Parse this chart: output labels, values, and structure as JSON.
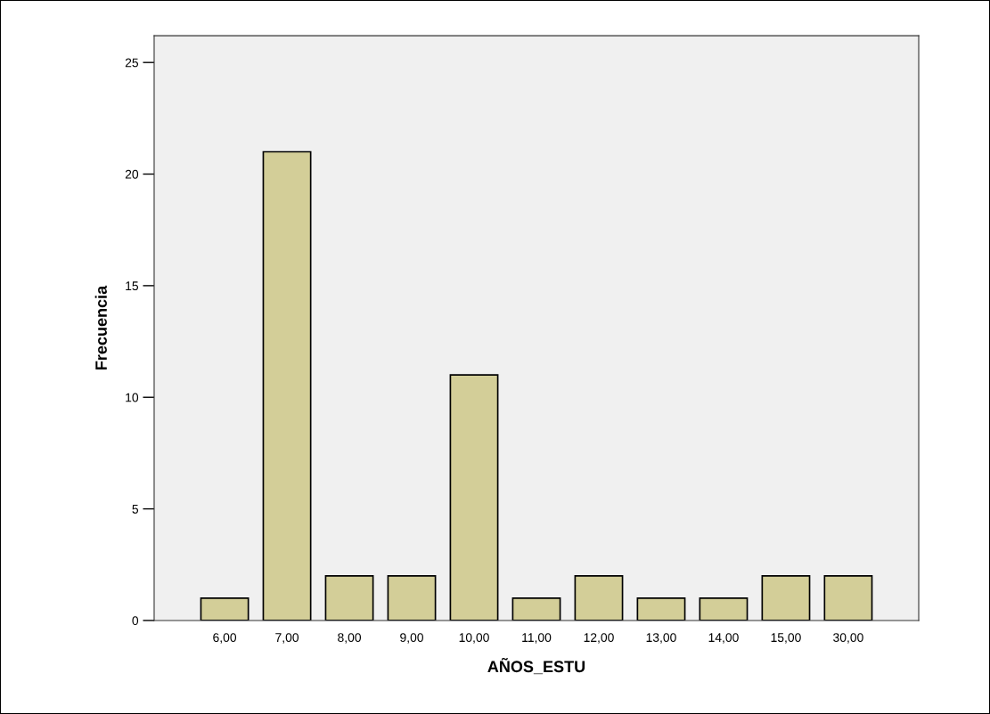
{
  "chart_data": {
    "type": "bar",
    "xlabel": "AÑOS_ESTU",
    "ylabel": "Frecuencia",
    "categories": [
      "6,00",
      "7,00",
      "8,00",
      "9,00",
      "10,00",
      "11,00",
      "12,00",
      "13,00",
      "14,00",
      "15,00",
      "30,00"
    ],
    "values": [
      1,
      21,
      2,
      2,
      11,
      1,
      2,
      1,
      1,
      2,
      2
    ],
    "color": "#d3ce98",
    "ylim": [
      0,
      26.2
    ],
    "yticks": [
      0,
      5,
      10,
      15,
      20,
      25
    ],
    "grid": false
  }
}
